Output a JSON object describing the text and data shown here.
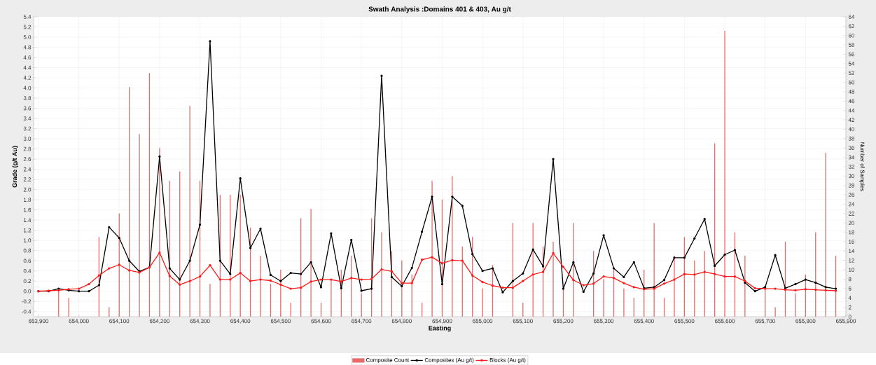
{
  "chart_data": {
    "type": "line",
    "title": "Swath Analysis :Domains 401 & 403, Au g/t",
    "xlabel": "Easting",
    "ylabel": "Grade (g/t Au)",
    "y2label": "Number of Samples",
    "x": [
      653900,
      653925,
      653950,
      653975,
      654000,
      654025,
      654050,
      654075,
      654100,
      654125,
      654150,
      654175,
      654200,
      654225,
      654250,
      654275,
      654300,
      654325,
      654350,
      654375,
      654400,
      654425,
      654450,
      654475,
      654500,
      654525,
      654550,
      654575,
      654600,
      654625,
      654650,
      654675,
      654700,
      654725,
      654750,
      654775,
      654800,
      654825,
      654850,
      654875,
      654900,
      654925,
      654950,
      654975,
      655000,
      655025,
      655050,
      655075,
      655100,
      655125,
      655150,
      655175,
      655200,
      655225,
      655250,
      655275,
      655300,
      655325,
      655350,
      655375,
      655400,
      655425,
      655450,
      655475,
      655500,
      655525,
      655550,
      655575,
      655600,
      655625,
      655650,
      655675,
      655700,
      655725,
      655750,
      655775,
      655800,
      655825,
      655850,
      655875
    ],
    "series": [
      {
        "name": "Composite Count",
        "type": "bar",
        "axis": "y2",
        "color": "#e86a6a",
        "values": [
          0,
          0,
          6,
          4,
          0,
          0,
          17,
          2,
          22,
          49,
          39,
          52,
          36,
          29,
          31,
          45,
          29,
          7,
          26,
          26,
          26,
          19,
          13,
          7,
          10,
          3,
          21,
          23,
          3,
          8,
          10,
          13,
          5,
          21,
          18,
          14,
          12,
          9,
          3,
          29,
          25,
          30,
          15,
          17,
          6,
          11,
          0,
          20,
          3,
          20,
          15,
          16,
          6,
          20,
          0,
          14,
          8,
          10,
          6,
          4,
          10,
          20,
          4,
          13,
          17,
          12,
          14,
          37,
          61,
          18,
          13,
          0,
          6,
          2,
          16,
          5,
          9,
          18,
          35,
          13
        ]
      },
      {
        "name": "Composites (Au g/t)",
        "axis": "y",
        "color": "#000000",
        "values": [
          0.0,
          0.0,
          0.05,
          0.02,
          0.0,
          0.0,
          0.12,
          1.26,
          1.05,
          0.6,
          0.39,
          0.47,
          2.65,
          0.45,
          0.23,
          0.6,
          1.31,
          4.92,
          0.6,
          0.34,
          2.22,
          0.85,
          1.23,
          0.32,
          0.2,
          0.36,
          0.34,
          0.57,
          0.08,
          1.14,
          0.06,
          1.01,
          0.01,
          0.05,
          4.24,
          0.28,
          0.1,
          0.46,
          1.17,
          1.86,
          0.14,
          1.86,
          1.68,
          0.73,
          0.4,
          0.45,
          -0.02,
          0.2,
          0.35,
          0.82,
          0.49,
          2.6,
          0.05,
          0.57,
          -0.01,
          0.35,
          1.1,
          0.45,
          0.28,
          0.57,
          0.06,
          0.08,
          0.22,
          0.66,
          0.66,
          1.04,
          1.42,
          0.5,
          0.72,
          0.81,
          0.17,
          0.0,
          0.08,
          0.71,
          0.06,
          0.14,
          0.23,
          0.17,
          0.08,
          0.05
        ]
      },
      {
        "name": "Blocks (Au g/t)",
        "axis": "y",
        "color": "#ff1a1a",
        "values": [
          0.0,
          0.01,
          0.02,
          0.04,
          0.05,
          0.14,
          0.31,
          0.45,
          0.52,
          0.41,
          0.37,
          0.47,
          0.76,
          0.3,
          0.13,
          0.2,
          0.29,
          0.51,
          0.23,
          0.23,
          0.36,
          0.2,
          0.23,
          0.21,
          0.13,
          0.05,
          0.07,
          0.19,
          0.23,
          0.23,
          0.19,
          0.26,
          0.23,
          0.24,
          0.43,
          0.39,
          0.16,
          0.16,
          0.62,
          0.67,
          0.55,
          0.61,
          0.6,
          0.31,
          0.18,
          0.11,
          0.07,
          0.07,
          0.2,
          0.33,
          0.38,
          0.75,
          0.48,
          0.22,
          0.12,
          0.15,
          0.29,
          0.26,
          0.16,
          0.08,
          0.04,
          0.05,
          0.15,
          0.23,
          0.34,
          0.33,
          0.38,
          0.34,
          0.29,
          0.29,
          0.2,
          0.06,
          0.05,
          0.05,
          0.03,
          0.02,
          0.04,
          0.03,
          0.02,
          0.01
        ]
      }
    ],
    "xlim": [
      653888,
      655900
    ],
    "xticks": [
      {
        "value": 653900,
        "label": "653,900"
      },
      {
        "value": 654000,
        "label": "654,000"
      },
      {
        "value": 654100,
        "label": "654,100"
      },
      {
        "value": 654200,
        "label": "654,200"
      },
      {
        "value": 654300,
        "label": "654,300"
      },
      {
        "value": 654400,
        "label": "654,400"
      },
      {
        "value": 654500,
        "label": "654,500"
      },
      {
        "value": 654600,
        "label": "654,600"
      },
      {
        "value": 654700,
        "label": "654,700"
      },
      {
        "value": 654800,
        "label": "654,800"
      },
      {
        "value": 654900,
        "label": "654,900"
      },
      {
        "value": 655000,
        "label": "655,000"
      },
      {
        "value": 655100,
        "label": "655,100"
      },
      {
        "value": 655200,
        "label": "655,200"
      },
      {
        "value": 655300,
        "label": "655,300"
      },
      {
        "value": 655400,
        "label": "655,400"
      },
      {
        "value": 655500,
        "label": "655,500"
      },
      {
        "value": 655600,
        "label": "655,600"
      },
      {
        "value": 655700,
        "label": "655,700"
      },
      {
        "value": 655800,
        "label": "655,800"
      },
      {
        "value": 655900,
        "label": "655,900"
      }
    ],
    "ylim": [
      -0.5,
      5.4
    ],
    "yticks": [
      {
        "value": -0.4,
        "label": "-0.4"
      },
      {
        "value": -0.2,
        "label": "-0.2"
      },
      {
        "value": 0,
        "label": "0.0"
      },
      {
        "value": 0.2,
        "label": "0.2"
      },
      {
        "value": 0.4,
        "label": "0.4"
      },
      {
        "value": 0.6,
        "label": "0.6"
      },
      {
        "value": 0.8,
        "label": "0.8"
      },
      {
        "value": 1.0,
        "label": "1.0"
      },
      {
        "value": 1.2,
        "label": "1.2"
      },
      {
        "value": 1.4,
        "label": "1.4"
      },
      {
        "value": 1.6,
        "label": "1.6"
      },
      {
        "value": 1.8,
        "label": "1.8"
      },
      {
        "value": 2.0,
        "label": "2.0"
      },
      {
        "value": 2.2,
        "label": "2.2"
      },
      {
        "value": 2.4,
        "label": "2.4"
      },
      {
        "value": 2.6,
        "label": "2.6"
      },
      {
        "value": 2.8,
        "label": "2.8"
      },
      {
        "value": 3.0,
        "label": "3.0"
      },
      {
        "value": 3.2,
        "label": "3.2"
      },
      {
        "value": 3.4,
        "label": "3.4"
      },
      {
        "value": 3.6,
        "label": "3.6"
      },
      {
        "value": 3.8,
        "label": "3.8"
      },
      {
        "value": 4.0,
        "label": "4.0"
      },
      {
        "value": 4.2,
        "label": "4.2"
      },
      {
        "value": 4.4,
        "label": "4.4"
      },
      {
        "value": 4.6,
        "label": "4.6"
      },
      {
        "value": 4.8,
        "label": "4.8"
      },
      {
        "value": 5.0,
        "label": "5.0"
      },
      {
        "value": 5.2,
        "label": "5.2"
      },
      {
        "value": 5.4,
        "label": "5.4"
      }
    ],
    "y2lim": [
      0,
      64
    ],
    "y2ticks": [
      0,
      2,
      4,
      6,
      8,
      10,
      12,
      14,
      16,
      18,
      20,
      22,
      24,
      26,
      28,
      30,
      32,
      34,
      36,
      38,
      40,
      42,
      44,
      46,
      48,
      50,
      52,
      54,
      56,
      58,
      60,
      62,
      64
    ],
    "grid": true,
    "legend": "bottom",
    "marker": "circle"
  }
}
